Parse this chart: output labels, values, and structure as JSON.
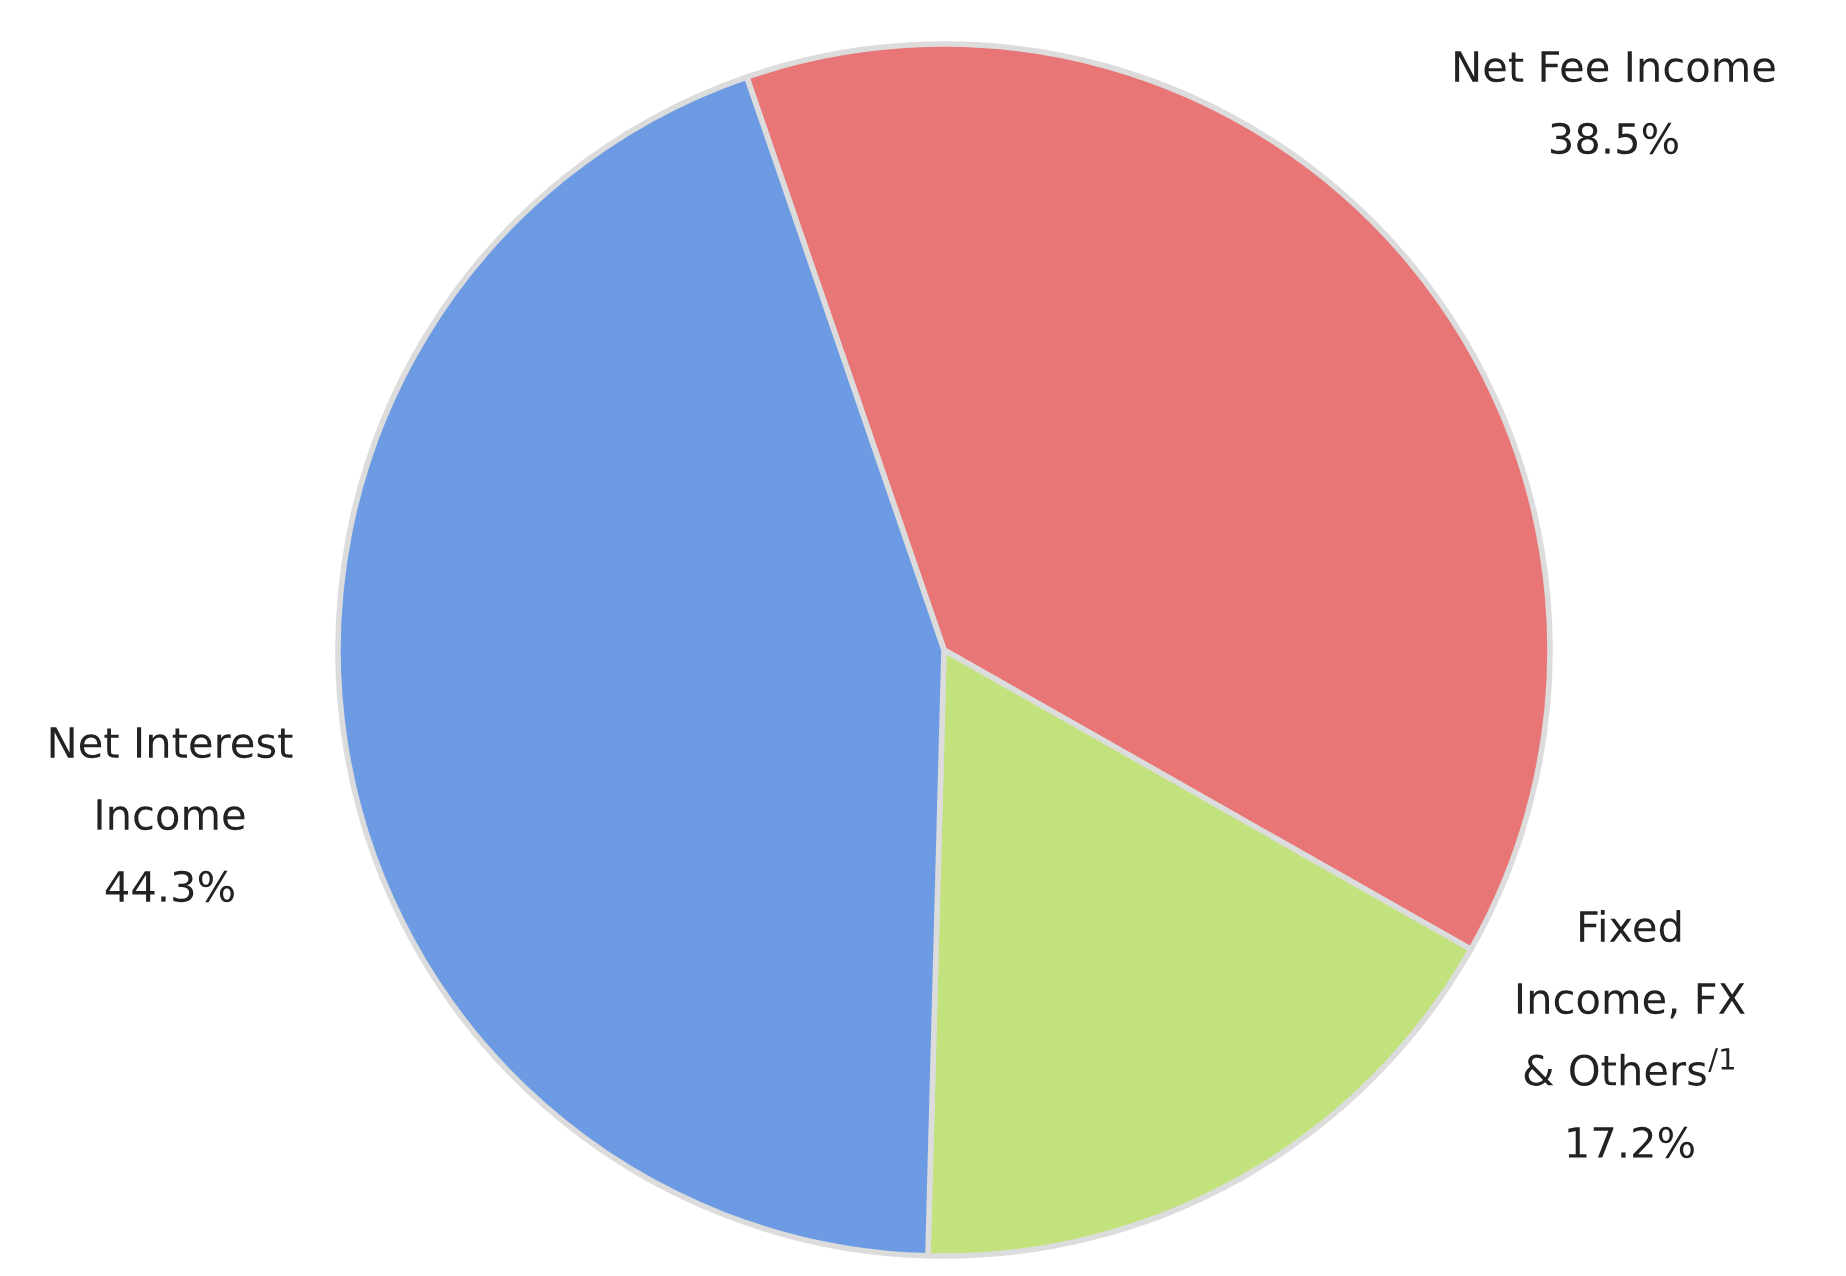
{
  "chart_data": {
    "type": "pie",
    "categories": [
      "Net Fee Income",
      "Fixed Income, FX & Others$^{/1}$",
      "Net Interest Income"
    ],
    "values": [
      38.5,
      17.2,
      44.3
    ],
    "colors": [
      "#e87676",
      "#c2e27e",
      "#6c9be4"
    ],
    "value_labels": [
      "38.5%",
      "17.2%",
      "44.3%"
    ]
  }
}
